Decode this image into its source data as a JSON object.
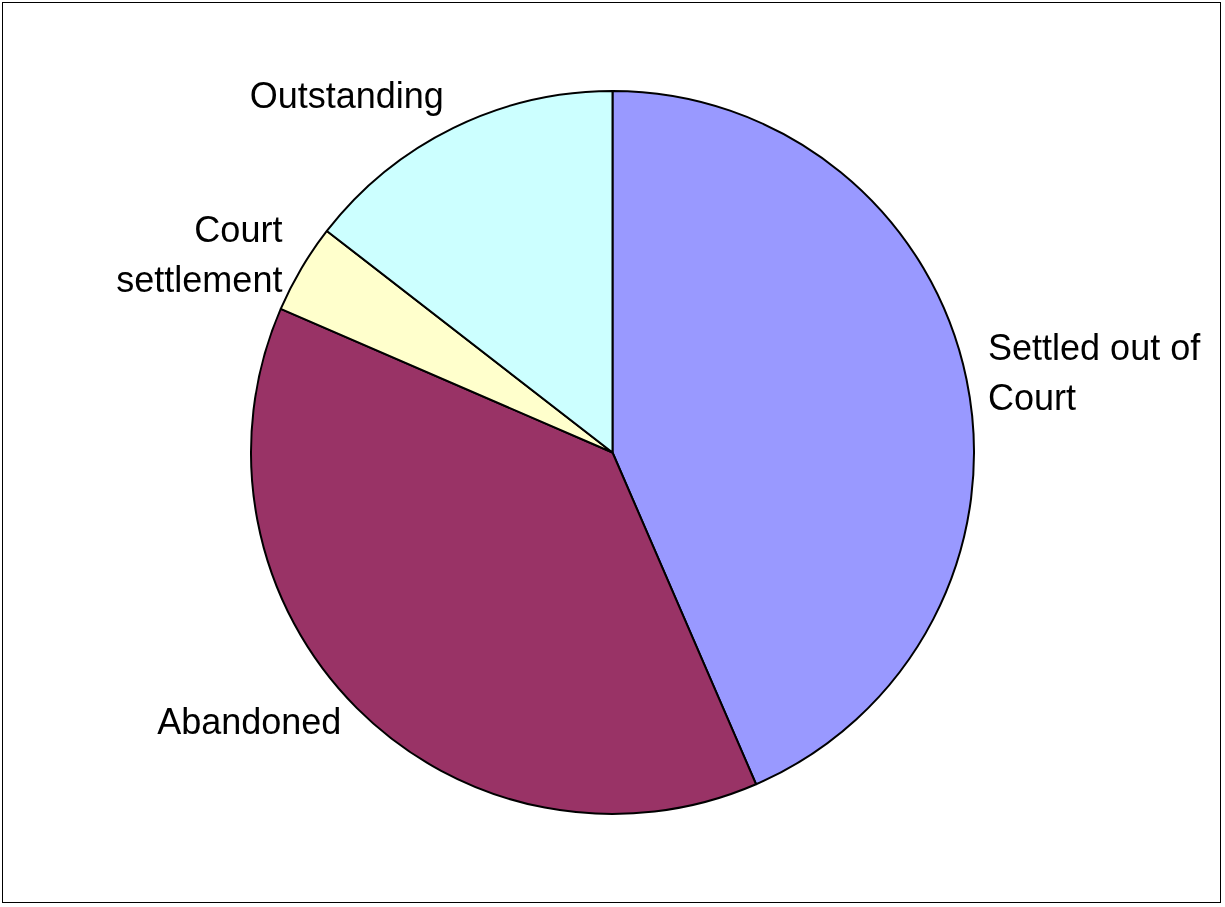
{
  "chart_data": {
    "type": "pie",
    "categories": [
      "Settled out of Court",
      "Abandoned",
      "Court settlement",
      "Outstanding"
    ],
    "values": [
      43.5,
      38,
      4,
      14.5
    ],
    "colors": [
      "#9999ff",
      "#993366",
      "#ffffcc",
      "#ccffff"
    ],
    "legend": false
  }
}
